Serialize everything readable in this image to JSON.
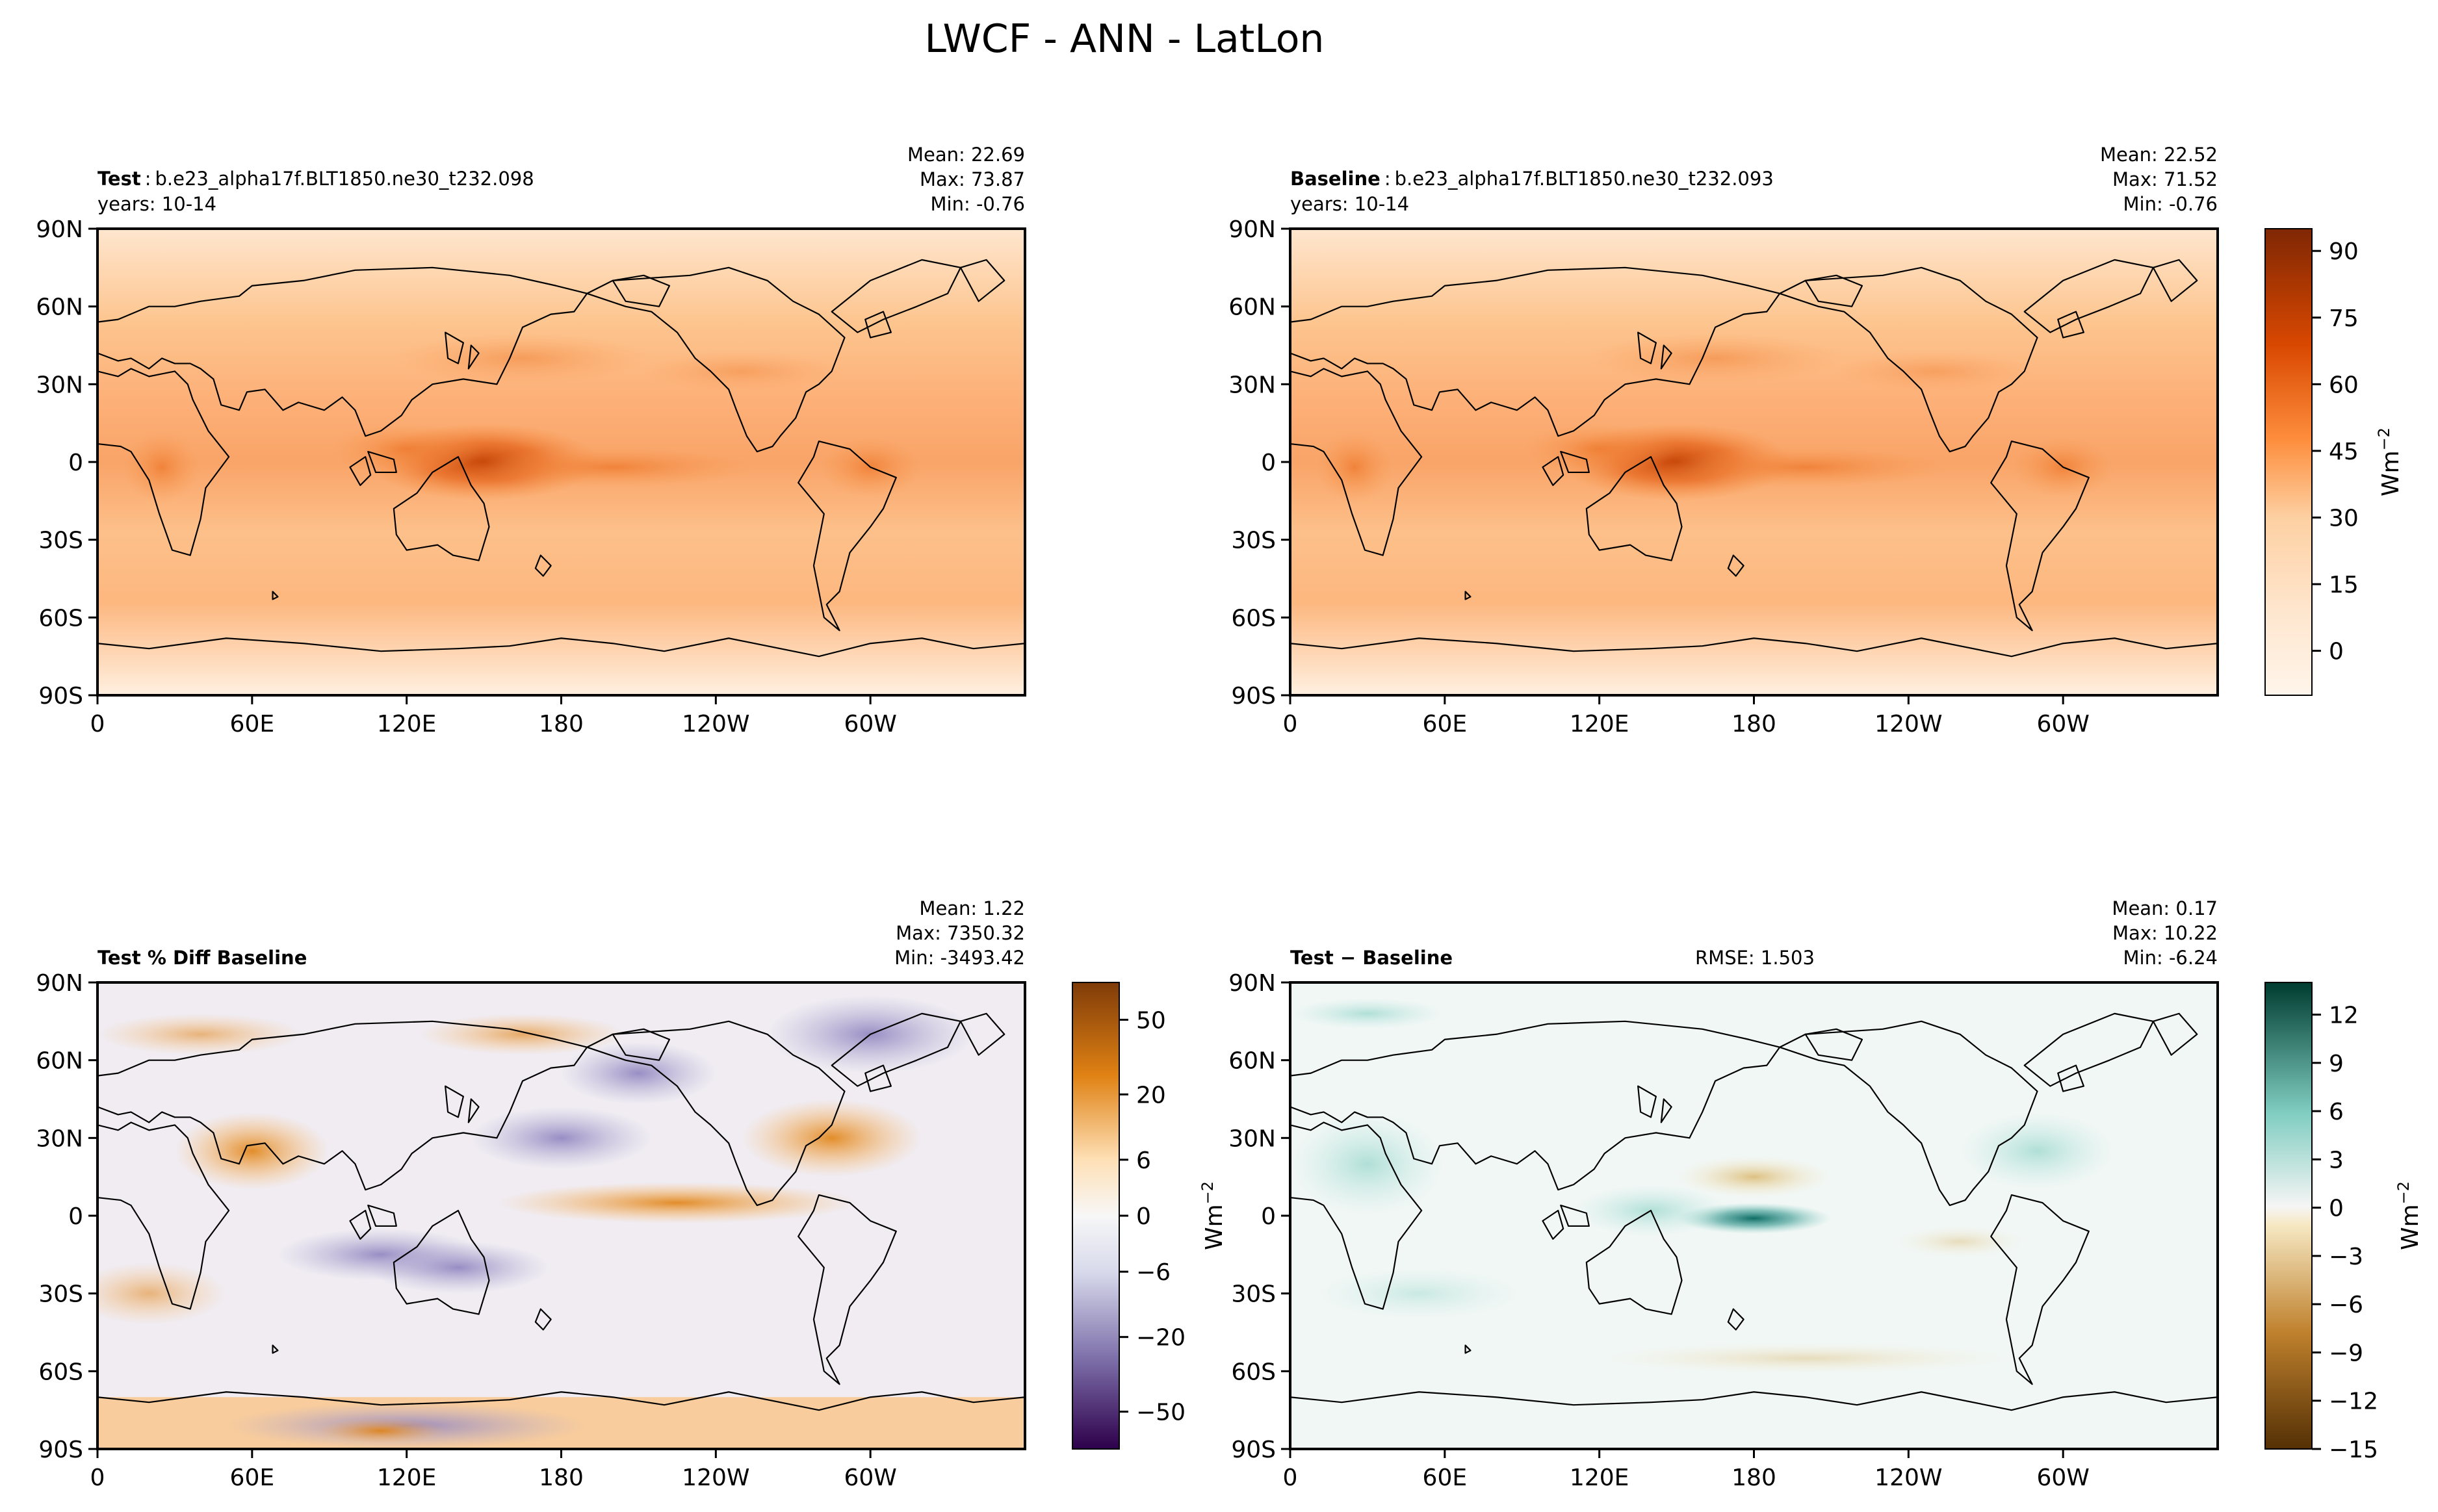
{
  "title": "LWCF - ANN - LatLon",
  "lon_ticks": [
    "0",
    "60E",
    "120E",
    "180",
    "120W",
    "60W"
  ],
  "lat_ticks": [
    "90N",
    "60N",
    "30N",
    "0",
    "30S",
    "60S",
    "90S"
  ],
  "units": "Wm",
  "units_exp": "−2",
  "panels": [
    {
      "id": "test",
      "label": "Test",
      "sep": ":",
      "name": "b.e23_alpha17f.BLT1850.ne30_t232.098",
      "years": "years: 10-14",
      "mean": "Mean: 22.69",
      "max": "Max: 73.87",
      "min": "Min: -0.76",
      "rmse": ""
    },
    {
      "id": "baseline",
      "label": "Baseline",
      "sep": ":",
      "name": "b.e23_alpha17f.BLT1850.ne30_t232.093",
      "years": "years: 10-14",
      "mean": "Mean: 22.52",
      "max": "Max: 71.52",
      "min": "Min: -0.76",
      "rmse": ""
    },
    {
      "id": "pctdiff",
      "label": "Test % Diff Baseline",
      "sep": "",
      "name": "",
      "years": "",
      "mean": "Mean:  1.22",
      "max": "Max: 7350.32",
      "min": "Min: -3493.42",
      "rmse": ""
    },
    {
      "id": "diff",
      "label": "Test − Baseline",
      "sep": "",
      "name": "",
      "years": "",
      "mean": "Mean:  0.17",
      "max": "Max: 10.22",
      "min": "Min: -6.24",
      "rmse": "RMSE: 1.503"
    }
  ],
  "colorbars": {
    "main": {
      "ticks": [
        "90",
        "75",
        "60",
        "45",
        "30",
        "15",
        "0"
      ]
    },
    "pct": {
      "ticks": [
        "50",
        "20",
        "6",
        "0",
        "−6",
        "−20",
        "−50"
      ]
    },
    "diff": {
      "ticks": [
        "12",
        "9",
        "6",
        "3",
        "0",
        "−3",
        "−6",
        "−9",
        "−12",
        "−15"
      ]
    }
  },
  "colors": {
    "orange_low": "#fff5eb",
    "orange_mid": "#fdae6b",
    "orange_high": "#7f2704",
    "purple_low": "#2d004b",
    "puor_mid": "#f7f7f7",
    "puor_high": "#7f3b08",
    "brbg_low": "#543005",
    "brbg_mid": "#f5f5f5",
    "brbg_high": "#003c30"
  },
  "chart_data": [
    {
      "type": "heatmap",
      "title": "Test: b.e23_alpha17f.BLT1850.ne30_t232.098",
      "xlabel": "",
      "ylabel": "",
      "stats": {
        "mean": 22.69,
        "max": 73.87,
        "min": -0.76
      },
      "colorbar_range": [
        -10,
        95
      ],
      "units": "Wm-2"
    },
    {
      "type": "heatmap",
      "title": "Baseline: b.e23_alpha17f.BLT1850.ne30_t232.093",
      "xlabel": "",
      "ylabel": "",
      "stats": {
        "mean": 22.52,
        "max": 71.52,
        "min": -0.76
      },
      "colorbar_range": [
        -10,
        95
      ],
      "units": "Wm-2"
    },
    {
      "type": "heatmap",
      "title": "Test % Diff Baseline",
      "xlabel": "",
      "ylabel": "",
      "stats": {
        "mean": 1.22,
        "max": 7350.32,
        "min": -3493.42
      },
      "colorbar_ticks": [
        -50,
        -20,
        -6,
        0,
        6,
        20,
        50
      ]
    },
    {
      "type": "heatmap",
      "title": "Test − Baseline",
      "xlabel": "",
      "ylabel": "",
      "stats": {
        "mean": 0.17,
        "max": 10.22,
        "min": -6.24,
        "rmse": 1.503
      },
      "colorbar_range": [
        -15,
        14
      ],
      "units": "Wm-2"
    }
  ]
}
